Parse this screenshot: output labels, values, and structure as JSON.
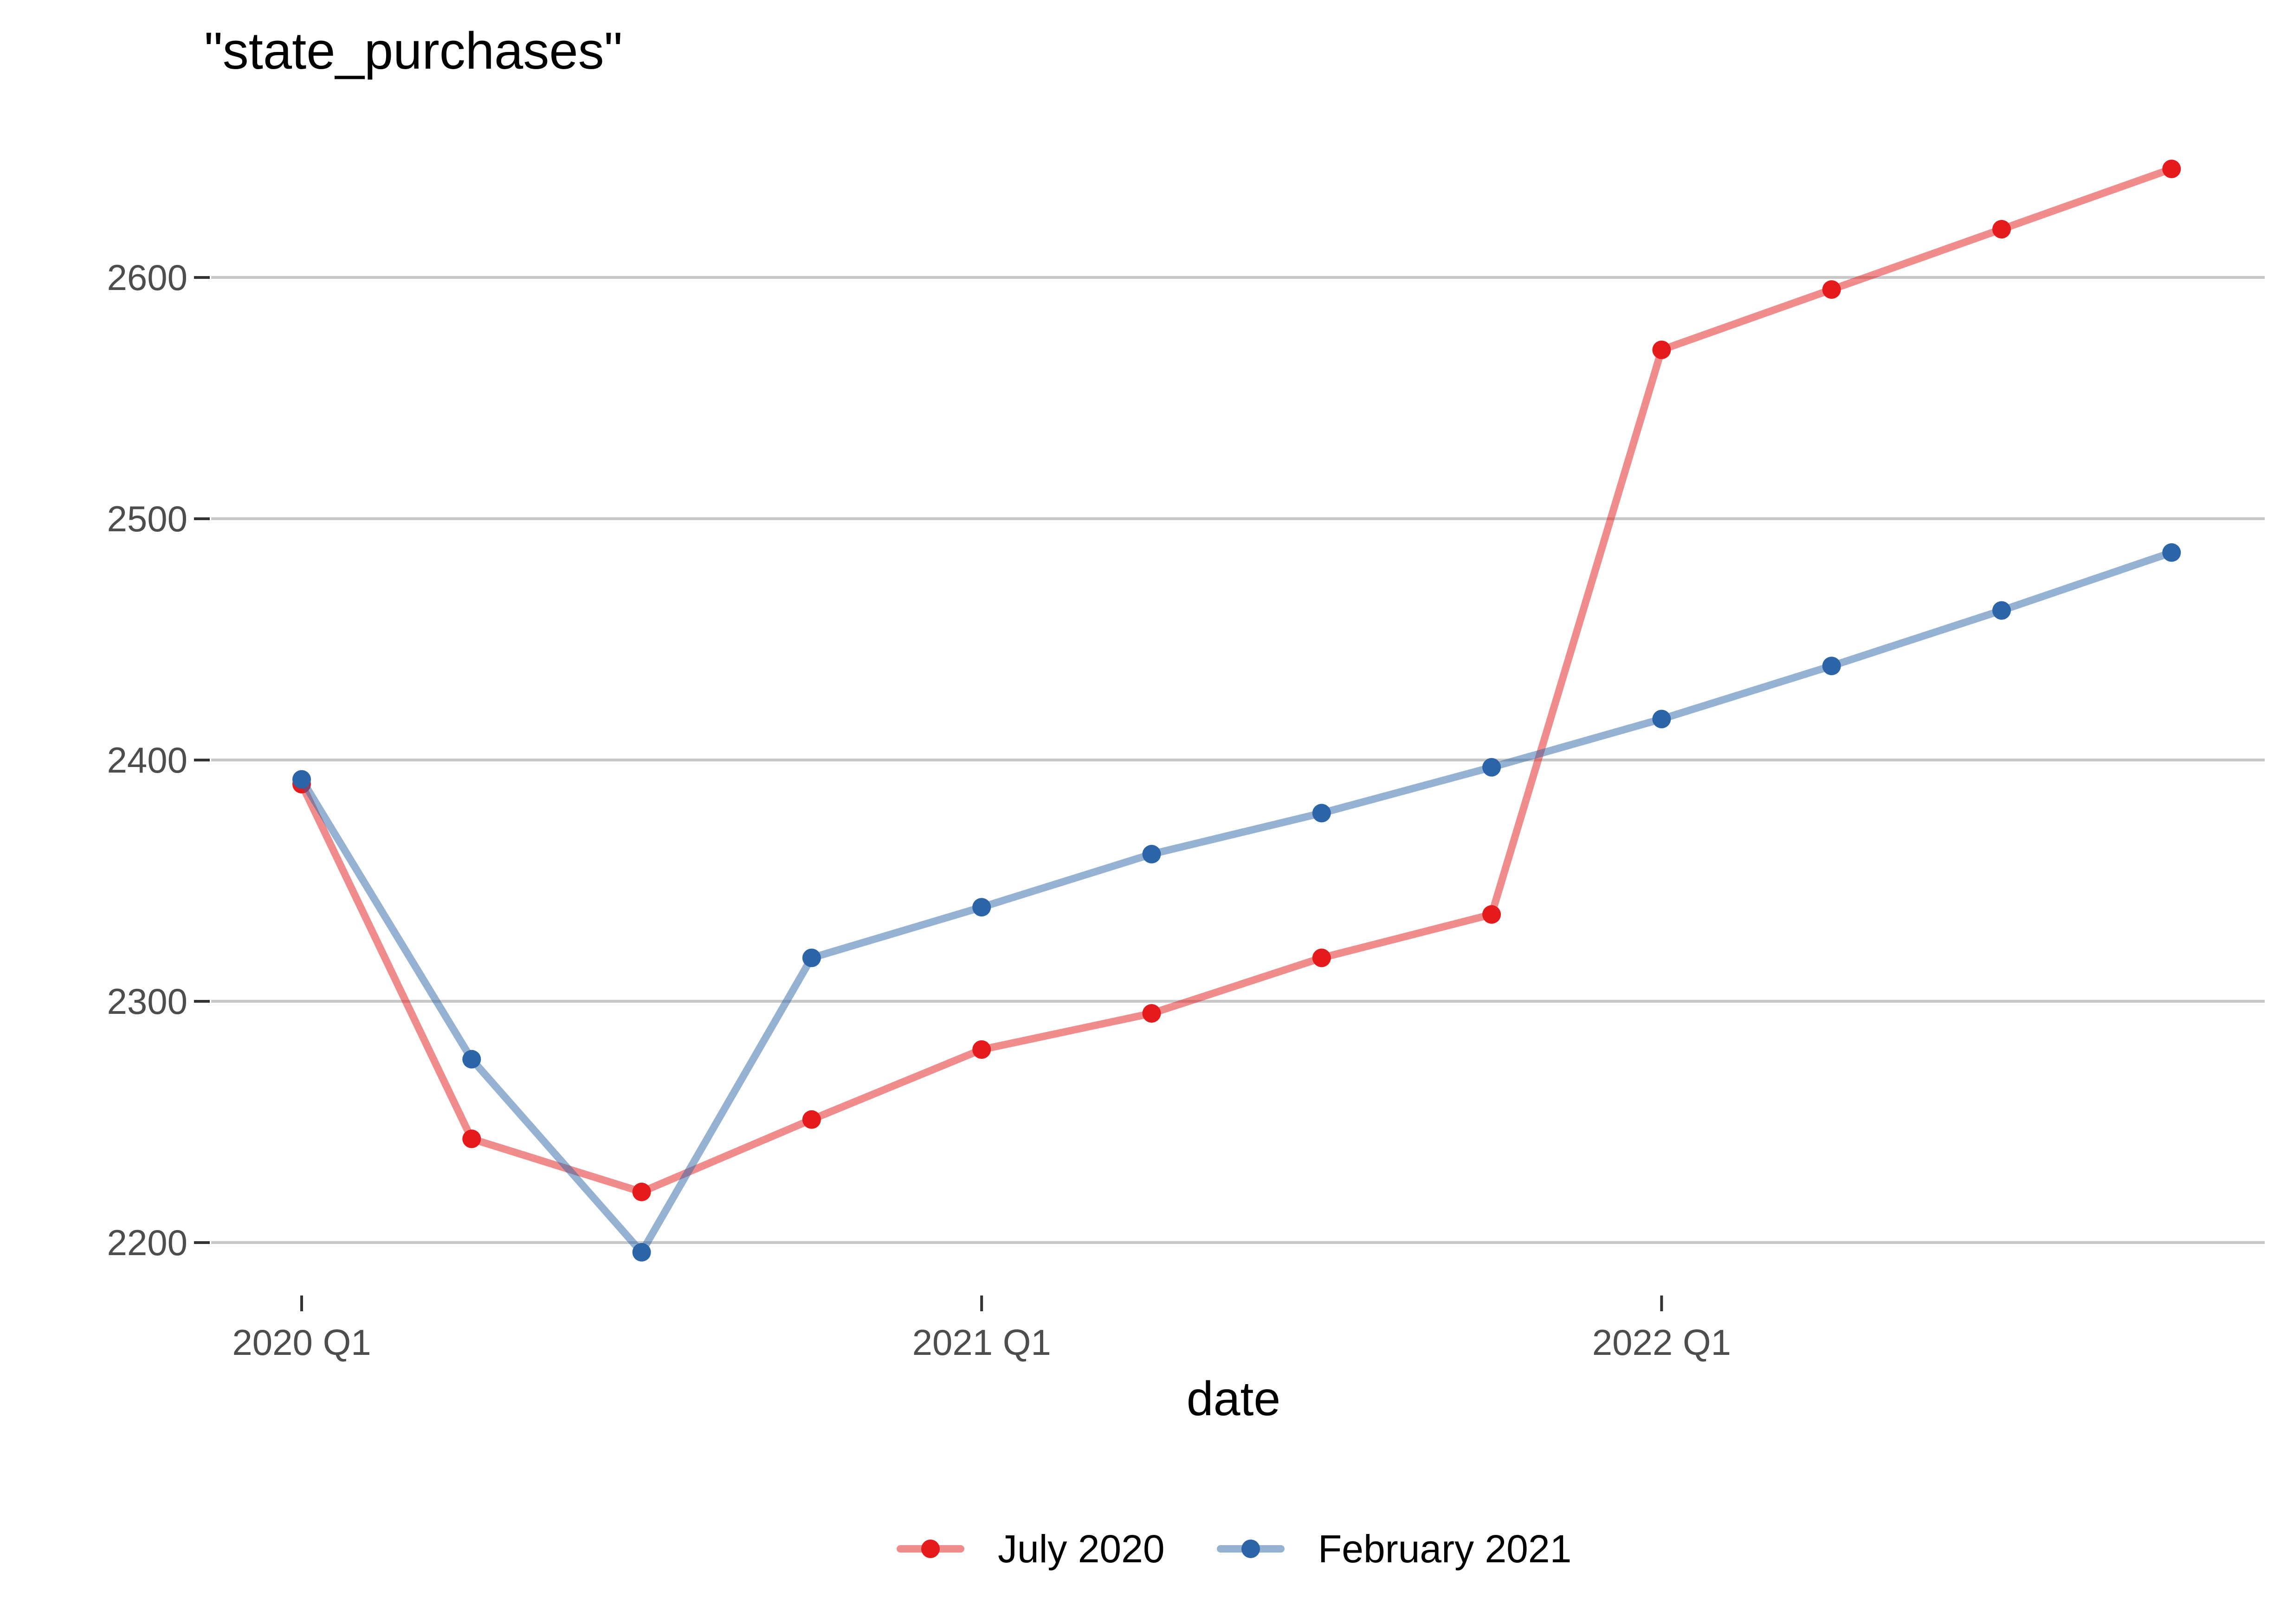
{
  "chart_data": {
    "type": "line",
    "title": "\"state_purchases\"",
    "xlabel": "date",
    "ylabel": "",
    "x": [
      "2020 Q1",
      "2020 Q2",
      "2020 Q3",
      "2020 Q4",
      "2021 Q1",
      "2021 Q2",
      "2021 Q3",
      "2021 Q4",
      "2022 Q1",
      "2022 Q2",
      "2022 Q3",
      "2022 Q4"
    ],
    "xticks": [
      "2020 Q1",
      "2021 Q1",
      "2022 Q1"
    ],
    "yticks": [
      2200,
      2300,
      2400,
      2500,
      2600
    ],
    "ylim": [
      2170,
      2680
    ],
    "grid": "horizontal",
    "legend_position": "bottom",
    "series": [
      {
        "name": "July 2020",
        "color": "#e41a1c",
        "values": [
          2390,
          2243,
          2221,
          2251,
          2280,
          2295,
          2318,
          2336,
          2570,
          2595,
          2620,
          2645
        ]
      },
      {
        "name": "February 2021",
        "color": "#2b65a8",
        "values": [
          2392,
          2276,
          2196,
          2318,
          2339,
          2361,
          2378,
          2397,
          2417,
          2439,
          2462,
          2486
        ]
      }
    ]
  }
}
